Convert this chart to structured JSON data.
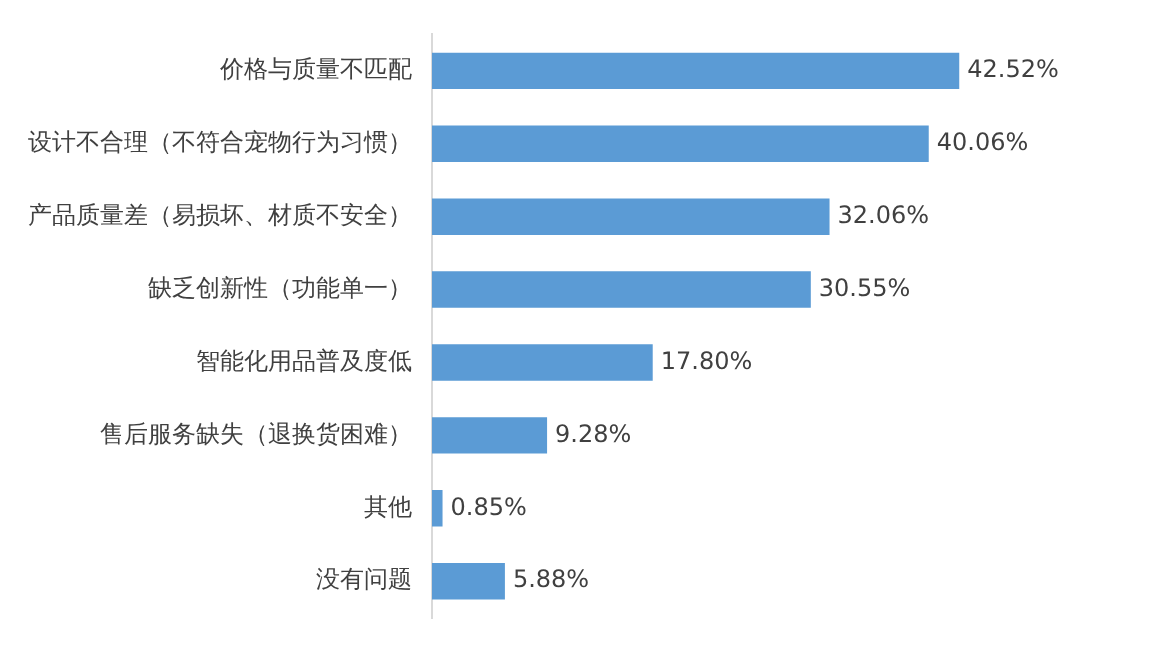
{
  "chart_data": {
    "type": "bar",
    "orientation": "horizontal",
    "categories": [
      "价格与质量不匹配",
      "设计不合理（不符合宠物行为习惯）",
      "产品质量差（易损坏、材质不安全）",
      "缺乏创新性（功能单一）",
      "智能化用品普及度低",
      "售后服务缺失（退换货困难）",
      "其他",
      "没有问题"
    ],
    "values": [
      42.52,
      40.06,
      32.06,
      30.55,
      17.8,
      9.28,
      0.85,
      5.88
    ],
    "value_labels": [
      "42.52%",
      "40.06%",
      "32.06%",
      "30.55%",
      "17.80%",
      "9.28%",
      "0.85%",
      "5.88%"
    ],
    "color": "#5b9bd5",
    "grid": false,
    "legend": false
  }
}
